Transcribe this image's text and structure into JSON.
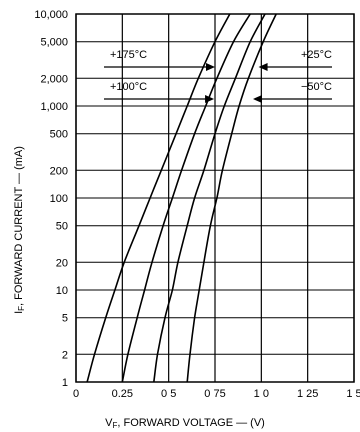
{
  "chart_data": {
    "type": "line",
    "xlabel": "V F, FORWARD VOLTAGE — (V)",
    "xlabel_parts": {
      "main": "V",
      "sub": "F",
      "rest": ", FORWARD VOLTAGE — (V)"
    },
    "ylabel_parts": {
      "main": "I",
      "sub": "F",
      "rest": ", FORWARD CURRENT — (mA)"
    },
    "x_scale": "linear",
    "y_scale": "log",
    "xlim": [
      0,
      1.5
    ],
    "ylim": [
      1,
      10000
    ],
    "grid": true,
    "x_ticks": [
      {
        "value": 0,
        "label": "0"
      },
      {
        "value": 0.25,
        "label": "0.25"
      },
      {
        "value": 0.5,
        "label": "0 5"
      },
      {
        "value": 0.75,
        "label": "0 75"
      },
      {
        "value": 1.0,
        "label": "1 0"
      },
      {
        "value": 1.25,
        "label": "1 25"
      },
      {
        "value": 1.5,
        "label": "1 5"
      }
    ],
    "y_ticks": [
      {
        "value": 1,
        "label": "1"
      },
      {
        "value": 2,
        "label": "2"
      },
      {
        "value": 5,
        "label": "5"
      },
      {
        "value": 10,
        "label": "10"
      },
      {
        "value": 20,
        "label": "20"
      },
      {
        "value": 50,
        "label": "50"
      },
      {
        "value": 100,
        "label": "100"
      },
      {
        "value": 200,
        "label": "200"
      },
      {
        "value": 500,
        "label": "500"
      },
      {
        "value": 1000,
        "label": "1,000"
      },
      {
        "value": 2000,
        "label": "2,000"
      },
      {
        "value": 5000,
        "label": "5,000"
      },
      {
        "value": 10000,
        "label": "10,000"
      }
    ],
    "series": [
      {
        "name": "+175°C",
        "points": [
          [
            0.06,
            1
          ],
          [
            0.1,
            2
          ],
          [
            0.16,
            5
          ],
          [
            0.21,
            10
          ],
          [
            0.26,
            20
          ],
          [
            0.34,
            50
          ],
          [
            0.4,
            100
          ],
          [
            0.46,
            200
          ],
          [
            0.54,
            500
          ],
          [
            0.6,
            1000
          ],
          [
            0.66,
            2000
          ],
          [
            0.75,
            5000
          ],
          [
            0.83,
            10000
          ]
        ]
      },
      {
        "name": "+100°C",
        "points": [
          [
            0.25,
            1
          ],
          [
            0.28,
            2
          ],
          [
            0.33,
            5
          ],
          [
            0.37,
            10
          ],
          [
            0.41,
            20
          ],
          [
            0.47,
            50
          ],
          [
            0.52,
            100
          ],
          [
            0.57,
            200
          ],
          [
            0.64,
            500
          ],
          [
            0.7,
            1000
          ],
          [
            0.76,
            2000
          ],
          [
            0.85,
            5000
          ],
          [
            0.94,
            10000
          ]
        ]
      },
      {
        "name": "+25°C",
        "points": [
          [
            0.42,
            1
          ],
          [
            0.44,
            2
          ],
          [
            0.48,
            5
          ],
          [
            0.52,
            10
          ],
          [
            0.55,
            20
          ],
          [
            0.6,
            50
          ],
          [
            0.64,
            100
          ],
          [
            0.69,
            200
          ],
          [
            0.75,
            500
          ],
          [
            0.8,
            1000
          ],
          [
            0.86,
            2000
          ],
          [
            0.94,
            5000
          ],
          [
            1.02,
            10000
          ]
        ]
      },
      {
        "name": "-50°C",
        "points": [
          [
            0.6,
            1
          ],
          [
            0.615,
            2
          ],
          [
            0.64,
            5
          ],
          [
            0.665,
            10
          ],
          [
            0.69,
            20
          ],
          [
            0.725,
            50
          ],
          [
            0.76,
            100
          ],
          [
            0.79,
            200
          ],
          [
            0.84,
            500
          ],
          [
            0.88,
            1000
          ],
          [
            0.93,
            2000
          ],
          [
            1.01,
            5000
          ],
          [
            1.08,
            10000
          ]
        ]
      }
    ],
    "annotations": [
      {
        "text": "+175°C",
        "series": 0,
        "arrow_at": [
          0.75,
          2500
        ]
      },
      {
        "text": "+100°C",
        "series": 1,
        "arrow_at": [
          0.745,
          1150
        ]
      },
      {
        "text": "+25°C",
        "series": 2,
        "arrow_at": [
          0.985,
          2500
        ]
      },
      {
        "text": "−50°C",
        "series": 3,
        "arrow_at": [
          0.955,
          1150
        ]
      }
    ]
  }
}
